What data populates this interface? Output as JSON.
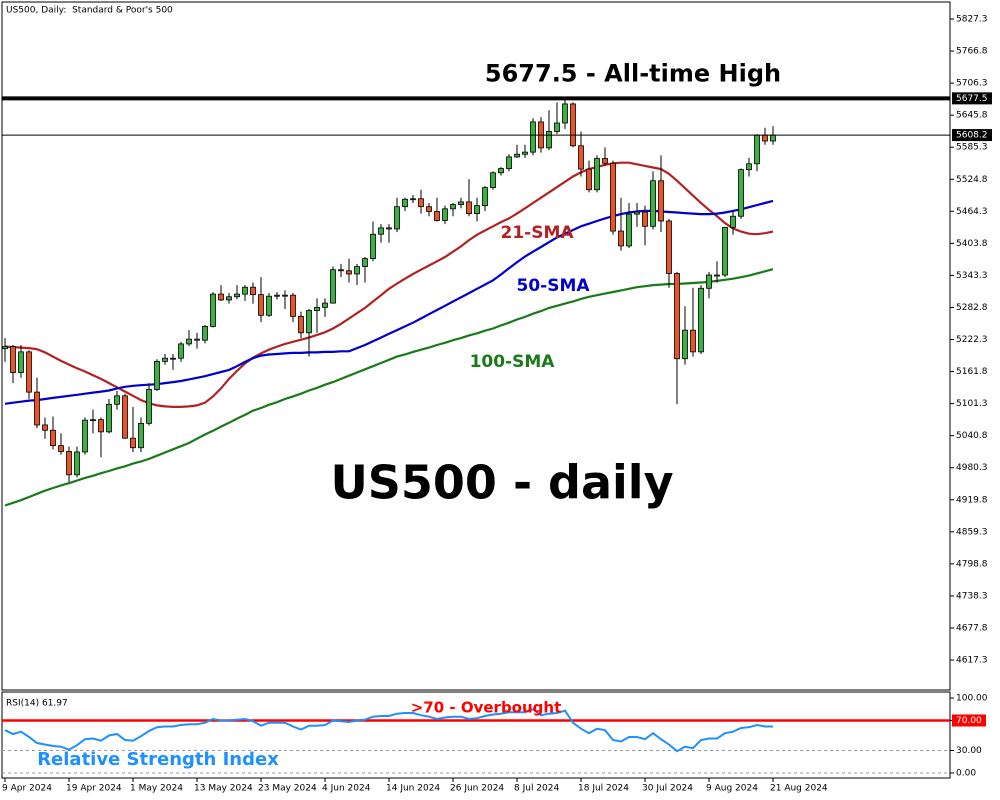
{
  "chart_data": [
    {
      "type": "candlestick",
      "title": "US500, Daily:  Standard & Poor's 500",
      "categories": [
        "9 Apr 2024",
        null,
        null,
        null,
        null,
        null,
        null,
        null,
        "19 Apr 2024",
        null,
        null,
        null,
        null,
        null,
        null,
        null,
        "1 May 2024",
        null,
        null,
        null,
        null,
        null,
        null,
        null,
        "13 May 2024",
        null,
        null,
        null,
        null,
        null,
        null,
        null,
        "23 May 2024",
        null,
        null,
        null,
        null,
        null,
        null,
        null,
        "4 Jun 2024",
        null,
        null,
        null,
        null,
        null,
        null,
        null,
        "14 Jun 2024",
        null,
        null,
        null,
        null,
        null,
        null,
        null,
        "26 Jun 2024",
        null,
        null,
        null,
        null,
        null,
        null,
        null,
        "8 Jul 2024",
        null,
        null,
        null,
        null,
        null,
        null,
        null,
        "18 Jul 2024",
        null,
        null,
        null,
        null,
        null,
        null,
        null,
        "30 Jul 2024",
        null,
        null,
        null,
        null,
        null,
        null,
        null,
        "9 Aug 2024",
        null,
        null,
        null,
        null,
        null,
        null,
        null,
        "21 Aug 2024"
      ],
      "open": [
        5205,
        5209,
        5160,
        5199,
        5123,
        5061,
        5051,
        5022,
        5011,
        4967,
        5010,
        5070,
        5071,
        5048,
        5100,
        5116,
        5036,
        5018,
        5064,
        5128,
        5181,
        5187,
        5187,
        5214,
        5223,
        5221,
        5247,
        5308,
        5297,
        5303,
        5308,
        5321,
        5307,
        5268,
        5304,
        5306,
        5306,
        5266,
        5235,
        5277,
        5283,
        5291,
        5354,
        5352,
        5346,
        5360,
        5375,
        5421,
        5433,
        5431,
        5473,
        5487,
        5488,
        5473,
        5464,
        5447,
        5469,
        5477,
        5482,
        5460,
        5475,
        5509,
        5537,
        5545,
        5567,
        5572,
        5576,
        5633,
        5584,
        5615,
        5631,
        5667,
        5588,
        5544,
        5505,
        5564,
        5555,
        5427,
        5399,
        5459,
        5463,
        5436,
        5522,
        5446,
        5347,
        5186,
        5240,
        5199,
        5319,
        5344,
        5344,
        5434,
        5455,
        5543,
        5554,
        5608,
        5597
      ],
      "high": [
        5225,
        5212,
        5212,
        5202,
        5150,
        5075,
        5077,
        5045,
        5020,
        5020,
        5075,
        5090,
        5075,
        5110,
        5125,
        5120,
        5095,
        5075,
        5140,
        5185,
        5195,
        5195,
        5218,
        5240,
        5235,
        5250,
        5312,
        5325,
        5310,
        5325,
        5325,
        5330,
        5340,
        5310,
        5312,
        5315,
        5310,
        5275,
        5280,
        5300,
        5300,
        5360,
        5365,
        5375,
        5365,
        5378,
        5445,
        5440,
        5440,
        5490,
        5490,
        5495,
        5505,
        5480,
        5490,
        5475,
        5480,
        5490,
        5525,
        5490,
        5512,
        5540,
        5548,
        5572,
        5590,
        5590,
        5640,
        5642,
        5655,
        5670,
        5677,
        5670,
        5615,
        5560,
        5570,
        5585,
        5560,
        5490,
        5480,
        5480,
        5475,
        5540,
        5570,
        5450,
        5350,
        5285,
        5320,
        5325,
        5350,
        5370,
        5435,
        5465,
        5545,
        5565,
        5610,
        5622,
        5625
      ],
      "low": [
        5180,
        5140,
        5150,
        5110,
        5055,
        5035,
        5015,
        5005,
        4953,
        4962,
        5005,
        5045,
        5000,
        5045,
        5090,
        5035,
        5010,
        5010,
        5060,
        5125,
        5175,
        5165,
        5180,
        5210,
        5205,
        5215,
        5245,
        5295,
        5290,
        5298,
        5295,
        5290,
        5255,
        5265,
        5298,
        5280,
        5255,
        5225,
        5190,
        5235,
        5265,
        5290,
        5340,
        5330,
        5325,
        5330,
        5370,
        5405,
        5405,
        5425,
        5465,
        5480,
        5460,
        5455,
        5445,
        5440,
        5455,
        5470,
        5455,
        5445,
        5465,
        5505,
        5532,
        5540,
        5565,
        5565,
        5570,
        5575,
        5580,
        5610,
        5620,
        5585,
        5530,
        5500,
        5500,
        5550,
        5420,
        5390,
        5395,
        5435,
        5400,
        5430,
        5425,
        5320,
        5100,
        5175,
        5190,
        5195,
        5300,
        5330,
        5340,
        5420,
        5450,
        5530,
        5540,
        5590,
        5590
      ],
      "close": [
        5209,
        5160,
        5199,
        5123,
        5061,
        5051,
        5022,
        5011,
        4967,
        5010,
        5070,
        5071,
        5048,
        5100,
        5116,
        5036,
        5018,
        5064,
        5128,
        5181,
        5187,
        5187,
        5214,
        5223,
        5221,
        5247,
        5308,
        5297,
        5303,
        5308,
        5321,
        5307,
        5268,
        5304,
        5306,
        5306,
        5266,
        5235,
        5277,
        5283,
        5291,
        5354,
        5352,
        5346,
        5360,
        5375,
        5421,
        5433,
        5431,
        5473,
        5487,
        5488,
        5473,
        5464,
        5447,
        5469,
        5477,
        5482,
        5460,
        5475,
        5509,
        5537,
        5545,
        5567,
        5572,
        5576,
        5633,
        5584,
        5615,
        5631,
        5667,
        5588,
        5544,
        5505,
        5564,
        5555,
        5427,
        5399,
        5459,
        5463,
        5436,
        5522,
        5446,
        5347,
        5186,
        5240,
        5199,
        5319,
        5344,
        5344,
        5434,
        5455,
        5543,
        5554,
        5608,
        5597,
        5608
      ],
      "up_color": "#3cb043",
      "down_color": "#e8542a",
      "series": [
        {
          "name": "21-SMA",
          "color": "#b22222",
          "values": [
            5209,
            5208,
            5207,
            5206,
            5204,
            5198,
            5190,
            5182,
            5175,
            5168,
            5162,
            5155,
            5148,
            5140,
            5132,
            5124,
            5116,
            5108,
            5102,
            5098,
            5096,
            5095,
            5095,
            5096,
            5098,
            5103,
            5115,
            5130,
            5148,
            5163,
            5177,
            5188,
            5196,
            5203,
            5209,
            5214,
            5218,
            5222,
            5226,
            5231,
            5236,
            5243,
            5252,
            5262,
            5272,
            5282,
            5294,
            5306,
            5318,
            5328,
            5337,
            5346,
            5354,
            5362,
            5370,
            5378,
            5388,
            5398,
            5410,
            5420,
            5428,
            5436,
            5444,
            5451,
            5460,
            5470,
            5480,
            5490,
            5500,
            5510,
            5520,
            5530,
            5538,
            5544,
            5548,
            5552,
            5555,
            5556,
            5556,
            5553,
            5550,
            5547,
            5544,
            5535,
            5522,
            5508,
            5494,
            5480,
            5467,
            5455,
            5442,
            5432,
            5426,
            5422,
            5421,
            5423,
            5426
          ]
        },
        {
          "name": "50-SMA",
          "color": "#0000cd",
          "values": [
            5101,
            5103,
            5105,
            5107,
            5108,
            5110,
            5112,
            5114,
            5116,
            5118,
            5120,
            5122,
            5124,
            5126,
            5130,
            5133,
            5135,
            5136,
            5137,
            5138,
            5140,
            5142,
            5144,
            5147,
            5150,
            5153,
            5157,
            5161,
            5165,
            5172,
            5180,
            5187,
            5192,
            5194,
            5195,
            5196,
            5197,
            5197,
            5198,
            5198,
            5199,
            5199,
            5200,
            5200,
            5206,
            5212,
            5219,
            5226,
            5233,
            5240,
            5247,
            5254,
            5262,
            5270,
            5278,
            5286,
            5294,
            5302,
            5310,
            5318,
            5326,
            5334,
            5345,
            5357,
            5368,
            5379,
            5388,
            5397,
            5406,
            5415,
            5422,
            5429,
            5436,
            5441,
            5446,
            5451,
            5455,
            5459,
            5462,
            5464,
            5465,
            5465,
            5464,
            5463,
            5462,
            5461,
            5460,
            5459,
            5459,
            5460,
            5462,
            5465,
            5468,
            5472,
            5476,
            5480,
            5484
          ]
        },
        {
          "name": "100-SMA",
          "color": "#1a7a1a",
          "values": [
            4909,
            4914,
            4919,
            4925,
            4931,
            4937,
            4942,
            4947,
            4951,
            4956,
            4961,
            4965,
            4970,
            4974,
            4979,
            4983,
            4988,
            4992,
            4997,
            5003,
            5009,
            5015,
            5021,
            5027,
            5035,
            5043,
            5050,
            5058,
            5065,
            5073,
            5080,
            5088,
            5093,
            5099,
            5104,
            5110,
            5115,
            5120,
            5126,
            5131,
            5137,
            5142,
            5148,
            5154,
            5160,
            5166,
            5172,
            5178,
            5184,
            5190,
            5194,
            5199,
            5203,
            5207,
            5212,
            5216,
            5221,
            5225,
            5230,
            5234,
            5239,
            5243,
            5249,
            5254,
            5260,
            5265,
            5271,
            5276,
            5282,
            5286,
            5290,
            5294,
            5299,
            5303,
            5306,
            5309,
            5312,
            5315,
            5318,
            5321,
            5323,
            5325,
            5326,
            5327,
            5327,
            5328,
            5329,
            5330,
            5331,
            5333,
            5335,
            5337,
            5340,
            5343,
            5347,
            5351,
            5355
          ]
        }
      ],
      "ylim": [
        4560.7,
        5859.4
      ],
      "yticks": [
        5827.3,
        5766.8,
        5706.3,
        5645.8,
        5585.3,
        5524.8,
        5464.3,
        5403.8,
        5343.3,
        5282.8,
        5222.3,
        5161.8,
        5101.3,
        5040.8,
        4980.3,
        4919.8,
        4859.3,
        4798.8,
        4738.3,
        4677.8,
        4617.3
      ],
      "level": {
        "value": 5677.5,
        "label": "5677.5 - All-time High"
      },
      "last_price": 5608.2,
      "watermark": "US500 - daily"
    },
    {
      "type": "line",
      "title": "RSI(14) 61.97",
      "color": "#1e90ff",
      "values": [
        57,
        52,
        55,
        48,
        40,
        38,
        36,
        35,
        31,
        37,
        45,
        46,
        43,
        50,
        52,
        44,
        43,
        49,
        56,
        61,
        62,
        62,
        64,
        65,
        65,
        67,
        72,
        70,
        70,
        71,
        72,
        69,
        63,
        67,
        67,
        67,
        62,
        58,
        63,
        63,
        64,
        70,
        69,
        68,
        70,
        71,
        75,
        76,
        76,
        79,
        80,
        80,
        77,
        75,
        72,
        74,
        75,
        75,
        72,
        73,
        76,
        78,
        79,
        81,
        81,
        81,
        85,
        77,
        79,
        80,
        83,
        67,
        59,
        53,
        59,
        57,
        44,
        42,
        48,
        48,
        45,
        53,
        45,
        38,
        29,
        35,
        33,
        44,
        46,
        46,
        53,
        55,
        60,
        61,
        64,
        62,
        62
      ],
      "ylim": [
        -6.7,
        108
      ],
      "yticks": [
        {
          "value": 100,
          "label": "100.00"
        },
        {
          "value": 70,
          "label": "70.00"
        },
        {
          "value": 30,
          "label": "30.00"
        },
        {
          "value": 0,
          "label": "0.00"
        }
      ],
      "level": {
        "value": 70,
        "label": ">70 - Overbought",
        "color": "#ff0000"
      },
      "annotation": "Relative Strength Index"
    }
  ]
}
